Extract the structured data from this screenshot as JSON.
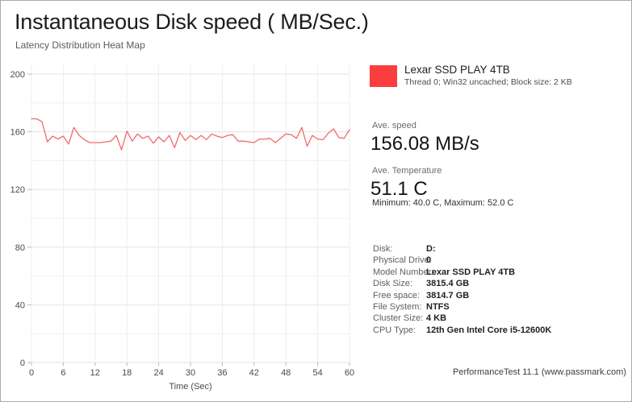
{
  "header": {
    "title": "Instantaneous Disk speed ( MB/Sec.)",
    "subtitle": "Latency Distribution Heat Map"
  },
  "legend": {
    "swatch_color": "#fa3d3f",
    "series_name": "Lexar SSD PLAY 4TB",
    "series_detail": "Thread 0; Win32 uncached; Block size: 2 KB"
  },
  "stats": {
    "ave_speed_label": "Ave. speed",
    "ave_speed_value": "156.08 MB/s",
    "ave_temp_label": "Ave. Temperature",
    "ave_temp_value": "51.1 C",
    "temp_range": "Minimum: 40.0 C, Maximum: 52.0 C"
  },
  "info": {
    "rows": [
      {
        "label": "Disk:",
        "value": "D:"
      },
      {
        "label": "Physical Drive:",
        "value": "0"
      },
      {
        "label": "Model Number:",
        "value": "Lexar SSD PLAY 4TB"
      },
      {
        "label": "Disk Size:",
        "value": "3815.4 GB"
      },
      {
        "label": "Free space:",
        "value": "3814.7 GB"
      },
      {
        "label": "File System:",
        "value": "NTFS"
      },
      {
        "label": "Cluster Size:",
        "value": "4 KB"
      },
      {
        "label": "CPU Type:",
        "value": "12th Gen Intel Core i5-12600K"
      }
    ]
  },
  "footer": {
    "text": "PerformanceTest 11.1 (www.passmark.com)"
  },
  "chart_data": {
    "type": "line",
    "title": "Instantaneous Disk speed ( MB/Sec.)",
    "xlabel": "Time (Sec)",
    "ylabel": "",
    "xlim": [
      0,
      60
    ],
    "ylim": [
      0,
      200
    ],
    "x_ticks": [
      0,
      6,
      12,
      18,
      24,
      30,
      36,
      42,
      48,
      54,
      60
    ],
    "y_ticks": [
      0,
      40,
      80,
      120,
      160,
      200
    ],
    "y_minor_step": 20,
    "grid": true,
    "legend_position": "top-right",
    "series": [
      {
        "name": "Lexar SSD PLAY 4TB",
        "color": "#f2696c",
        "x": [
          0,
          1,
          2,
          3,
          4,
          5,
          6,
          7,
          8,
          9,
          10,
          11,
          12,
          13,
          14,
          15,
          16,
          17,
          18,
          19,
          20,
          21,
          22,
          23,
          24,
          25,
          26,
          27,
          28,
          29,
          30,
          31,
          32,
          33,
          34,
          35,
          36,
          37,
          38,
          39,
          40,
          41,
          42,
          43,
          44,
          45,
          46,
          47,
          48,
          49,
          50,
          51,
          52,
          53,
          54,
          55,
          56,
          57,
          58,
          59,
          60
        ],
        "values": [
          169,
          169,
          167,
          153,
          157,
          155,
          157,
          151.5,
          163,
          157.5,
          154.5,
          152.5,
          152.5,
          152.5,
          153,
          153.5,
          157.5,
          147.5,
          160.5,
          153.5,
          158.5,
          155.5,
          157,
          152,
          156.5,
          153,
          157.5,
          149,
          159.5,
          154,
          157.5,
          154.5,
          157.5,
          154.5,
          158.5,
          157,
          156,
          157.5,
          158,
          153.5,
          153.5,
          153,
          152.5,
          155,
          155,
          155.5,
          152.5,
          155.5,
          158.5,
          158,
          155.5,
          163,
          150,
          157.5,
          155,
          154.5,
          159,
          162,
          156,
          155.5,
          161.5
        ]
      }
    ]
  }
}
